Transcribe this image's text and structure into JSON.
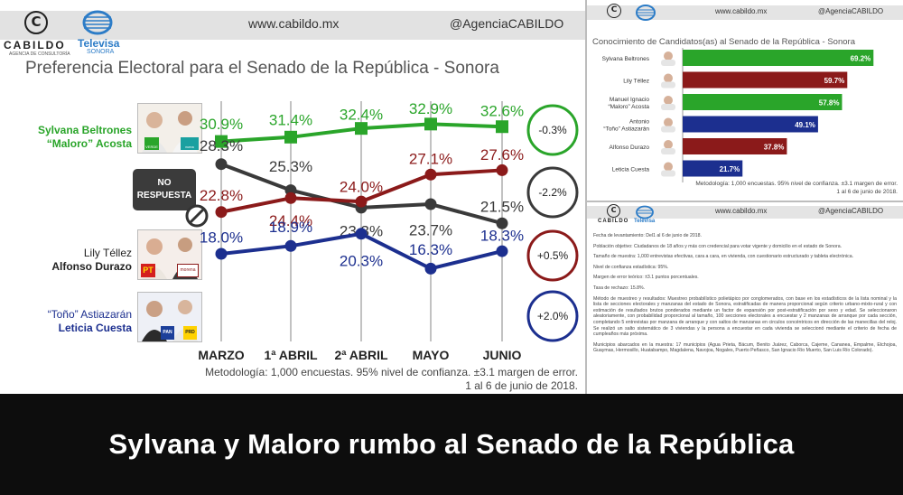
{
  "left_panel": {
    "header": {
      "brand": "CABILDO",
      "brand_sub": "AGENCIA DE CONSULTORÍA",
      "tv_brand": "Televisa",
      "tv_sub": "SONORA",
      "url": "www.cabildo.mx",
      "handle": "@AgenciaCABILDO"
    },
    "chart_title": "Preferencia Electoral para el Senado de la República - Sonora",
    "candidates": [
      {
        "line1": "Sylvana Beltrones",
        "line2": "“Maloro” Acosta",
        "color": "#2aa52a"
      },
      {
        "line1": "NO",
        "line2": "RESPUESTA",
        "color": "#333333"
      },
      {
        "line1": "Lily Téllez",
        "line2": "Alfonso Durazo",
        "color": "#8b1a1a"
      },
      {
        "line1": "“Toño” Astiazarán",
        "line2": "Leticia Cuesta",
        "color": "#1c2f8f"
      }
    ],
    "party_labels": {
      "verde": "VERDE",
      "nueva": "nueva alianza",
      "pt": "PT",
      "morena": "morena",
      "pan": "PAN",
      "prd": "PRD"
    },
    "methodology": "Metodología: 1,000 encuestas. 95% nivel de confianza. ±3.1 margen de error.",
    "dates": "1 al 6 de junio de 2018."
  },
  "chart_data": [
    {
      "type": "line",
      "title": "Preferencia Electoral para el Senado de la República - Sonora",
      "categories": [
        "MARZO",
        "1ª ABRIL",
        "2ª ABRIL",
        "MAYO",
        "JUNIO"
      ],
      "series": [
        {
          "name": "Sylvana Beltrones “Maloro” Acosta",
          "color": "#2aa52a",
          "values": [
            30.9,
            31.4,
            32.4,
            32.9,
            32.6
          ],
          "labels": [
            "30.9%",
            "31.4%",
            "32.4%",
            "32.9%",
            "32.6%"
          ],
          "change": "-0.3%"
        },
        {
          "name": "NO RESPUESTA",
          "color": "#3a3a3a",
          "values": [
            28.3,
            25.3,
            23.3,
            23.7,
            21.5
          ],
          "labels": [
            "28.3%",
            "25.3%",
            "23.3%",
            "23.7%",
            "21.5%"
          ],
          "change": "-2.2%"
        },
        {
          "name": "Lily Téllez Alfonso Durazo",
          "color": "#8b1a1a",
          "values": [
            22.8,
            24.4,
            24.0,
            27.1,
            27.6
          ],
          "labels": [
            "22.8%",
            "24.4%",
            "24.0%",
            "27.1%",
            "27.6%"
          ],
          "change": "+0.5%"
        },
        {
          "name": "“Toño” Astiazarán Leticia Cuesta",
          "color": "#1c2f8f",
          "values": [
            18.0,
            18.9,
            20.3,
            16.3,
            18.3
          ],
          "labels": [
            "18.0%",
            "18.9%",
            "20.3%",
            "16.3%",
            "18.3%"
          ],
          "change": "+2.0%"
        }
      ]
    },
    {
      "type": "bar",
      "title": "Conocimiento de Candidatos(as) al Senado de la República - Sonora",
      "categories": [
        "Sylvana Beltrones",
        "Lily Téllez",
        "Manuel Ignacio “Maloro” Acosta",
        "Antonio “Toño” Astiazarán",
        "Alfonso Durazo",
        "Leticia Cuesta"
      ],
      "values": [
        69.2,
        59.7,
        57.8,
        49.1,
        37.8,
        21.7
      ],
      "labels": [
        "69.2%",
        "59.7%",
        "57.8%",
        "49.1%",
        "37.8%",
        "21.7%"
      ],
      "colors": [
        "#2aa52a",
        "#8b1a1a",
        "#2aa52a",
        "#1c2f8f",
        "#8b1a1a",
        "#1c2f8f"
      ],
      "xlim": [
        0,
        75
      ]
    }
  ],
  "right_panel": {
    "top": {
      "url": "www.cabildo.mx",
      "handle": "@AgenciaCABILDO",
      "title": "Conocimiento de Candidatos(as) al Senado de la República - Sonora",
      "bar_names": [
        [
          "Sylvana Beltrones"
        ],
        [
          "Lily Téllez"
        ],
        [
          "Manuel Ignacio",
          "“Maloro” Acosta"
        ],
        [
          "Antonio",
          "“Toño” Astiazarán"
        ],
        [
          "Alfonso Durazo"
        ],
        [
          "Leticia Cuesta"
        ]
      ],
      "methodology": "Metodología: 1,000 encuestas. 95% nivel de confianza. ±3.1 margen de error.",
      "dates": "1 al 6 de junio de 2018."
    },
    "bottom": {
      "brand": "CABILDO",
      "tv_brand": "Televisa",
      "url": "www.cabildo.mx",
      "handle": "@AgenciaCABILDO",
      "paragraphs": [
        "Fecha de levantamiento: Del1 al 6 de junio de 2018.",
        "Población objetivo: Ciudadanos de 18 años y más con credencial para votar vigente y domicilio en el estado de Sonora.",
        "Tamaño de muestra: 1,000 entrevistas efectivas, cara a cara, en vivienda, con cuestionario estructurado y tableta electrónica.",
        "Nivel de confianza estadística: 95%.",
        "Margen de error teórico: ±3.1 puntos porcentuales.",
        "Tasa de rechazo: 15.8%.",
        "Método de muestreo y resultados: Muestreo probabilístico polietápico por conglomerados, con base en los estadísticos de la lista nominal y la lista de secciones electorales y manzanas del estado de Sonora, estratificadas de manera proporcional según criterio urbano-mixto-rural y con estimación de resultados brutos ponderados mediante un factor de expansión por post-estratificación por sexo y edad. Se seleccionaron aleatoriamente, con probabilidad proporcional al tamaño, 100 secciones electorales a encuestar y 2 manzanas de arranque por cada sección, completando 5 entrevistas por manzana de arranque y con saltos de manzanas en circulos concéntricos en dirección de las manecillas del reloj. Se realizó un salto sistemático de 3 viviendas y la persona a encuestar en cada vivienda se seleccionó mediante el criterio de fecha de cumpleaños más próxima.",
        "Municipios abarcados en la muestra: 17 municipios (Agua Prieta, Bácum, Benito Juárez, Caborca, Cajeme, Cananea, Empalme, Etchojoa, Guaymas, Hermosillo, Huatabampo, Magdalena, Navojoa, Nogales, Puerto Peñasco, San Ignacio Río Muerto, San Luis Río Colorado)."
      ]
    }
  },
  "caption": "Sylvana y Maloro rumbo al Senado de la República"
}
